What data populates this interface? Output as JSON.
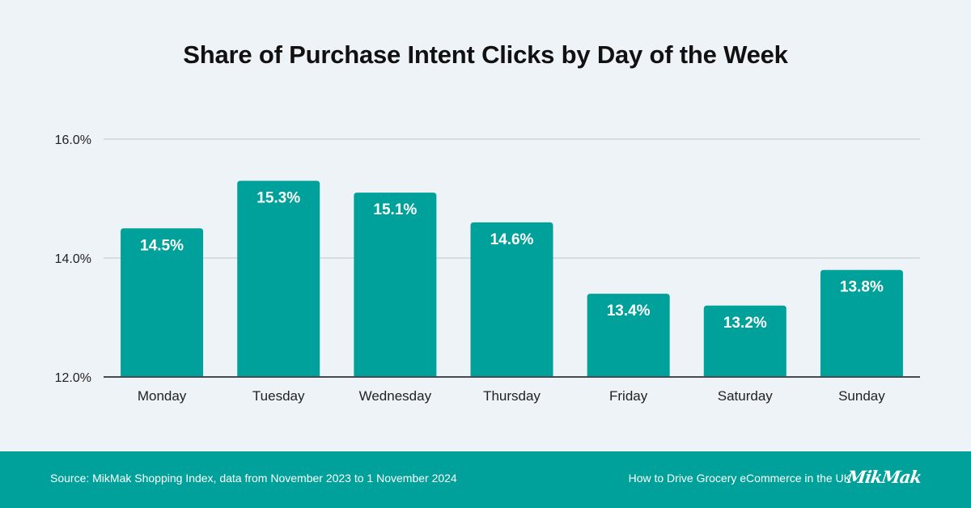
{
  "title": "Share of Purchase Intent Clicks by Day of the Week",
  "chart_data": {
    "type": "bar",
    "categories": [
      "Monday",
      "Tuesday",
      "Wednesday",
      "Thursday",
      "Friday",
      "Saturday",
      "Sunday"
    ],
    "values": [
      14.5,
      15.3,
      15.1,
      14.6,
      13.4,
      13.2,
      13.8
    ],
    "value_labels": [
      "14.5%",
      "15.3%",
      "15.1%",
      "14.6%",
      "13.4%",
      "13.2%",
      "13.8%"
    ],
    "ylim": [
      12.0,
      16.0
    ],
    "yticks": [
      12.0,
      14.0,
      16.0
    ],
    "ytick_labels": [
      "12.0%",
      "14.0%",
      "16.0%"
    ],
    "grid": true,
    "bar_color": "#00a19a",
    "xlabel": "",
    "ylabel": ""
  },
  "footer": {
    "source": "Source: MikMak Shopping Index, data from November 2023 to 1 November 2024",
    "report": "How to Drive Grocery eCommerce in the UK",
    "logo_text": "MikMak",
    "background": "#00a19a"
  },
  "colors": {
    "background": "#eef3f8",
    "bar": "#00a19a",
    "grid": "#c9cfd6",
    "axis": "#444b52"
  }
}
